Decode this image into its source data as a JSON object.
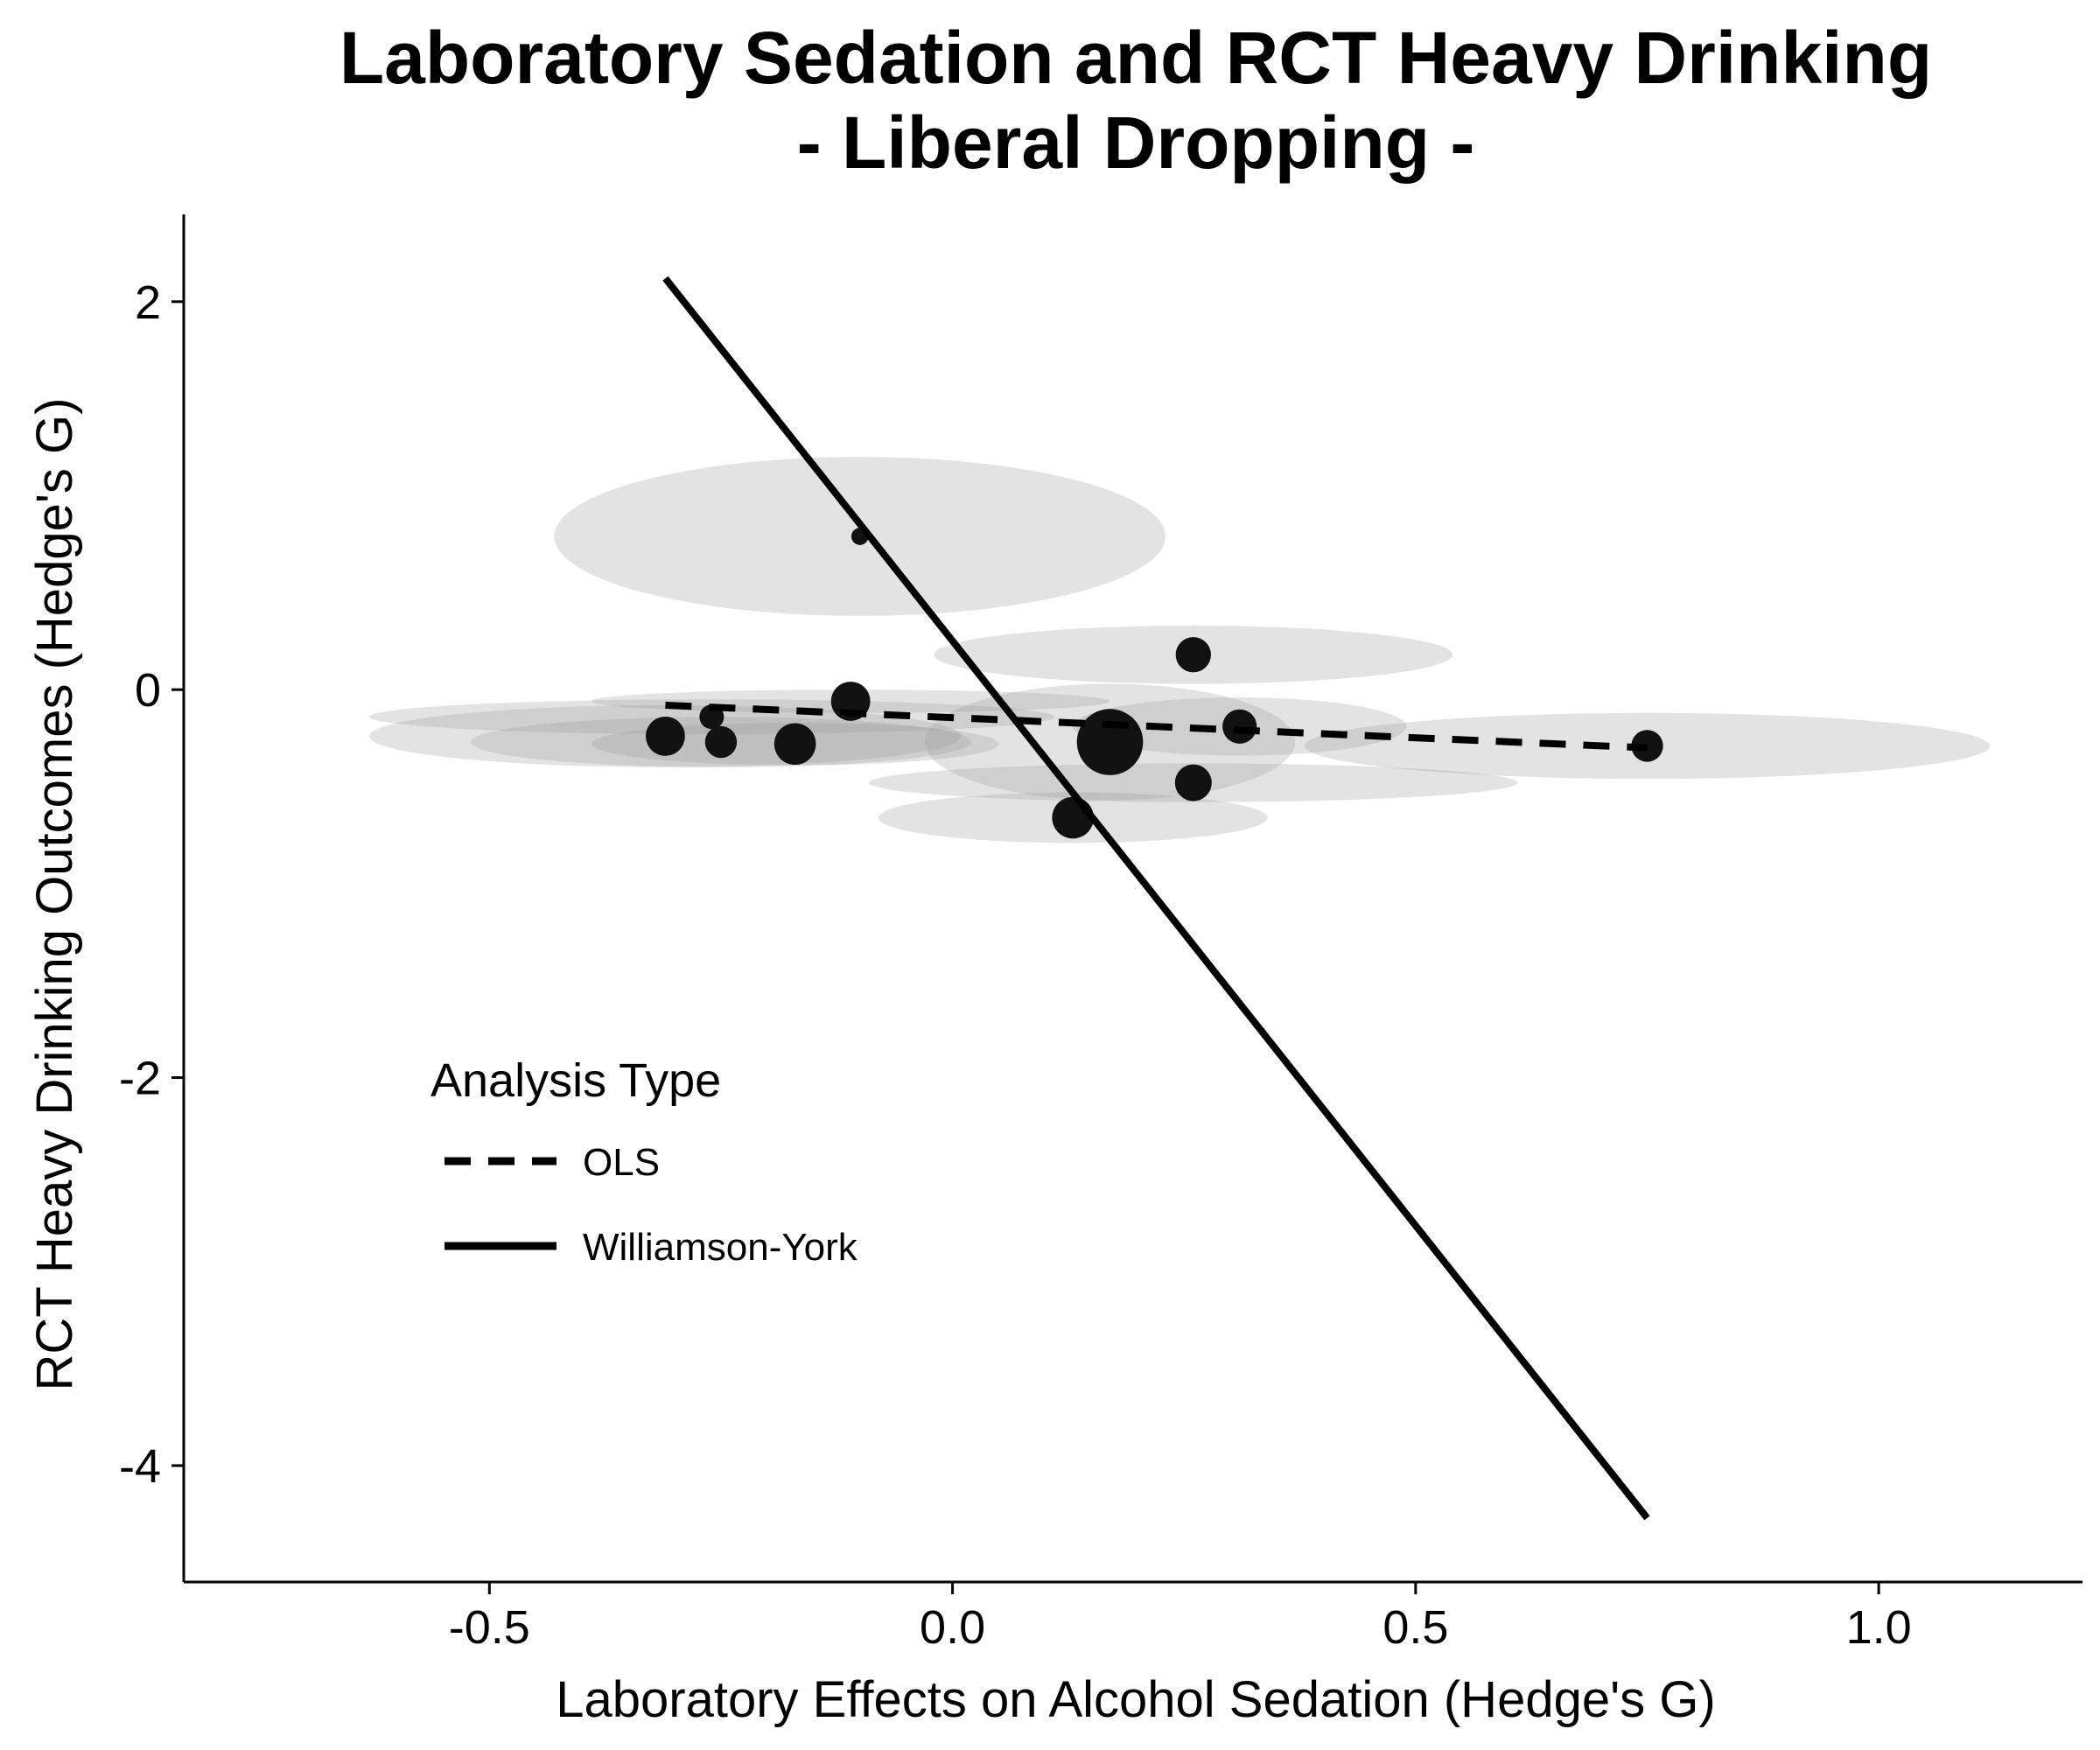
{
  "chart_data": {
    "type": "scatter",
    "title_line1": "Laboratory Sedation and RCT Heavy Drinking",
    "title_line2": "- Liberal Dropping -",
    "xlabel": "Laboratory Effects on Alcohol Sedation (Hedge's G)",
    "ylabel": "RCT Heavy Drinking Outcomes (Hedge's G)",
    "xlim": [
      -0.83,
      1.22
    ],
    "ylim": [
      -4.6,
      2.45
    ],
    "xticks": [
      -0.5,
      0.0,
      0.5,
      1.0
    ],
    "xtick_labels": [
      "-0.5",
      "0.0",
      "0.5",
      "1.0"
    ],
    "yticks": [
      2,
      0,
      -2,
      -4
    ],
    "ytick_labels": [
      "2",
      "0",
      "-2",
      "-4"
    ],
    "grid": false,
    "points": [
      {
        "x": -0.1,
        "y": 0.79,
        "weight": 0.35,
        "ex": 0.33,
        "ey": 0.41
      },
      {
        "x": 0.26,
        "y": 0.18,
        "weight": 0.72,
        "ex": 0.28,
        "ey": 0.15
      },
      {
        "x": -0.11,
        "y": -0.06,
        "weight": 0.8,
        "ex": 0.28,
        "ey": 0.06
      },
      {
        "x": -0.26,
        "y": -0.14,
        "weight": 0.5,
        "ex": 0.37,
        "ey": 0.09
      },
      {
        "x": -0.31,
        "y": -0.24,
        "weight": 0.8,
        "ex": 0.32,
        "ey": 0.16
      },
      {
        "x": -0.25,
        "y": -0.27,
        "weight": 0.65,
        "ex": 0.27,
        "ey": 0.13
      },
      {
        "x": -0.17,
        "y": -0.28,
        "weight": 0.85,
        "ex": 0.22,
        "ey": 0.11
      },
      {
        "x": 0.17,
        "y": -0.27,
        "weight": 1.35,
        "ex": 0.2,
        "ey": 0.3
      },
      {
        "x": 0.31,
        "y": -0.19,
        "weight": 0.7,
        "ex": 0.18,
        "ey": 0.15
      },
      {
        "x": 0.26,
        "y": -0.48,
        "weight": 0.75,
        "ex": 0.35,
        "ey": 0.1
      },
      {
        "x": 0.13,
        "y": -0.66,
        "weight": 0.85,
        "ex": 0.21,
        "ey": 0.13
      },
      {
        "x": 0.75,
        "y": -0.29,
        "weight": 0.65,
        "ex": 0.37,
        "ey": 0.17
      }
    ],
    "series": [
      {
        "name": "OLS",
        "style": "dashed",
        "x": [
          -0.31,
          0.75
        ],
        "y": [
          -0.08,
          -0.3
        ]
      },
      {
        "name": "Williamson-York",
        "style": "solid",
        "x": [
          -0.31,
          0.75
        ],
        "y": [
          2.12,
          -4.27
        ]
      }
    ],
    "legend": {
      "title": "Analysis Type",
      "placement": "inside-lower-left"
    },
    "colors": {
      "point": "#111111",
      "ellipse": "#9a9a9a",
      "line": "#000000",
      "axis": "#000000"
    }
  }
}
